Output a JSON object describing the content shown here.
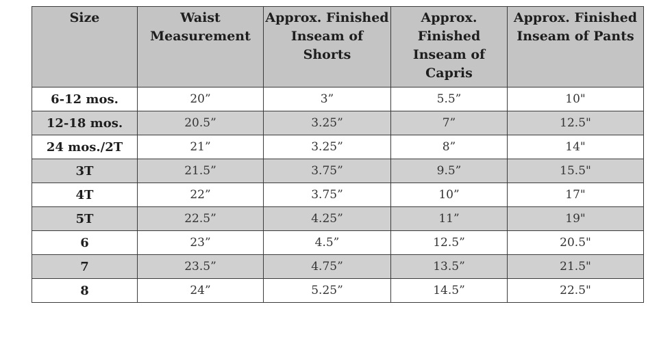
{
  "table": {
    "headers": [
      "Size",
      "Waist Measurement",
      "Approx. Finished Inseam of Shorts",
      "Approx. Finished Inseam of Capris",
      "Approx. Finished Inseam of Pants"
    ],
    "rows": [
      [
        "6-12 mos.",
        "20”",
        "3”",
        "5.5”",
        "10\""
      ],
      [
        "12-18 mos.",
        "20.5”",
        "3.25”",
        "7”",
        "12.5\""
      ],
      [
        "24 mos./2T",
        "21”",
        "3.25”",
        "8”",
        "14\""
      ],
      [
        "3T",
        "21.5”",
        "3.75”",
        "9.5”",
        "15.5\""
      ],
      [
        "4T",
        "22”",
        "3.75”",
        "10”",
        "17\""
      ],
      [
        "5T",
        "22.5”",
        "4.25”",
        "11”",
        "19\""
      ],
      [
        "6",
        "23”",
        "4.5”",
        "12.5”",
        "20.5\""
      ],
      [
        "7",
        "23.5”",
        "4.75”",
        "13.5”",
        "21.5\""
      ],
      [
        "8",
        "24”",
        "5.25”",
        "14.5”",
        "22.5\""
      ]
    ]
  },
  "colors": {
    "header_bg": "#c4c4c4",
    "shaded_row_bg": "#d0d0d0",
    "plain_row_bg": "#ffffff",
    "border": "#3a3a3a"
  }
}
